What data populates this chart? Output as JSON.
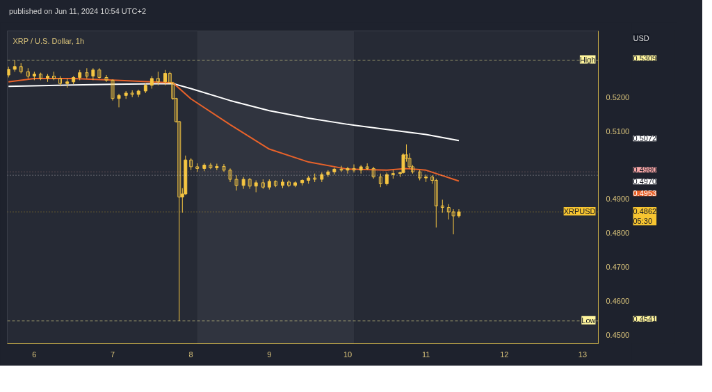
{
  "chart_data": {
    "type": "candlestick",
    "title": "XRP / U.S. Dollar, 1h",
    "subtitle": "published on Jun 11, 2024 10:54 UTC+2",
    "ylabel": "USD",
    "color": "#f5c542",
    "x": [
      5.67,
      5.75,
      5.83,
      5.92,
      6.0,
      6.08,
      6.17,
      6.25,
      6.33,
      6.42,
      6.5,
      6.58,
      6.67,
      6.75,
      6.83,
      6.92,
      7.0,
      7.08,
      7.17,
      7.25,
      7.33,
      7.42,
      7.5,
      7.58,
      7.67,
      7.73,
      7.77,
      7.81,
      7.85,
      7.89,
      7.93,
      8.0,
      8.08,
      8.17,
      8.25,
      8.33,
      8.42,
      8.5,
      8.58,
      8.67,
      8.75,
      8.83,
      8.92,
      9.0,
      9.08,
      9.17,
      9.25,
      9.33,
      9.42,
      9.5,
      9.58,
      9.67,
      9.75,
      9.83,
      9.92,
      10.0,
      10.08,
      10.17,
      10.25,
      10.33,
      10.42,
      10.5,
      10.58,
      10.67,
      10.71,
      10.75,
      10.79,
      10.83,
      10.92,
      11.0,
      11.08,
      11.13,
      11.21,
      11.29,
      11.35,
      11.42
    ],
    "ohlc": [
      [
        0.5265,
        0.529,
        0.5258,
        0.5282
      ],
      [
        0.5282,
        0.5309,
        0.5275,
        0.529
      ],
      [
        0.529,
        0.53,
        0.527,
        0.5275
      ],
      [
        0.5275,
        0.5285,
        0.5255,
        0.5262
      ],
      [
        0.5262,
        0.5275,
        0.525,
        0.5268
      ],
      [
        0.5268,
        0.5272,
        0.525,
        0.5256
      ],
      [
        0.5256,
        0.5268,
        0.5245,
        0.5262
      ],
      [
        0.5262,
        0.5275,
        0.525,
        0.5255
      ],
      [
        0.5255,
        0.5262,
        0.5232,
        0.524
      ],
      [
        0.524,
        0.5255,
        0.5228,
        0.5245
      ],
      [
        0.5245,
        0.5262,
        0.5238,
        0.5258
      ],
      [
        0.5258,
        0.528,
        0.525,
        0.5272
      ],
      [
        0.5272,
        0.5285,
        0.5255,
        0.5262
      ],
      [
        0.5262,
        0.5285,
        0.525,
        0.528
      ],
      [
        0.528,
        0.5285,
        0.5255,
        0.5258
      ],
      [
        0.5258,
        0.5265,
        0.5245,
        0.525
      ],
      [
        0.525,
        0.5252,
        0.519,
        0.5196
      ],
      [
        0.5196,
        0.521,
        0.517,
        0.5205
      ],
      [
        0.5205,
        0.5218,
        0.5195,
        0.5212
      ],
      [
        0.5212,
        0.522,
        0.52,
        0.5208
      ],
      [
        0.5208,
        0.5222,
        0.52,
        0.5218
      ],
      [
        0.5218,
        0.524,
        0.5212,
        0.5235
      ],
      [
        0.5235,
        0.5262,
        0.5225,
        0.5255
      ],
      [
        0.5255,
        0.5275,
        0.5235,
        0.5245
      ],
      [
        0.5245,
        0.528,
        0.5235,
        0.527
      ],
      [
        0.527,
        0.5275,
        0.524,
        0.5242
      ],
      [
        0.5242,
        0.5245,
        0.5192,
        0.5196
      ],
      [
        0.5196,
        0.5198,
        0.5125,
        0.5128
      ],
      [
        0.5128,
        0.513,
        0.4541,
        0.4906
      ],
      [
        0.4906,
        0.4932,
        0.486,
        0.4915
      ],
      [
        0.4915,
        0.5028,
        0.4912,
        0.5015
      ],
      [
        0.5015,
        0.502,
        0.4985,
        0.4995
      ],
      [
        0.4995,
        0.5005,
        0.498,
        0.499
      ],
      [
        0.499,
        0.5005,
        0.4982,
        0.5
      ],
      [
        0.5,
        0.5006,
        0.4988,
        0.4992
      ],
      [
        0.4992,
        0.5004,
        0.4985,
        0.4996
      ],
      [
        0.4996,
        0.5003,
        0.498,
        0.4985
      ],
      [
        0.4985,
        0.499,
        0.495,
        0.4958
      ],
      [
        0.4958,
        0.497,
        0.4925,
        0.494
      ],
      [
        0.494,
        0.4965,
        0.493,
        0.4958
      ],
      [
        0.4958,
        0.4962,
        0.493,
        0.4938
      ],
      [
        0.4938,
        0.4955,
        0.492,
        0.4948
      ],
      [
        0.4948,
        0.4958,
        0.493,
        0.4935
      ],
      [
        0.4935,
        0.4958,
        0.4928,
        0.4952
      ],
      [
        0.4952,
        0.4955,
        0.4935,
        0.494
      ],
      [
        0.494,
        0.4958,
        0.4932,
        0.495
      ],
      [
        0.495,
        0.4955,
        0.4935,
        0.494
      ],
      [
        0.494,
        0.4952,
        0.4935,
        0.4948
      ],
      [
        0.4948,
        0.4958,
        0.494,
        0.4955
      ],
      [
        0.4955,
        0.4968,
        0.4945,
        0.4962
      ],
      [
        0.4962,
        0.4975,
        0.495,
        0.4958
      ],
      [
        0.4958,
        0.4978,
        0.495,
        0.4972
      ],
      [
        0.4972,
        0.4985,
        0.4965,
        0.498
      ],
      [
        0.498,
        0.4992,
        0.4972,
        0.4988
      ],
      [
        0.4988,
        0.4998,
        0.498,
        0.4985
      ],
      [
        0.4985,
        0.4995,
        0.4975,
        0.499
      ],
      [
        0.499,
        0.5002,
        0.4978,
        0.4985
      ],
      [
        0.4985,
        0.5,
        0.4975,
        0.4995
      ],
      [
        0.4995,
        0.5005,
        0.4985,
        0.499
      ],
      [
        0.499,
        0.4995,
        0.496,
        0.4965
      ],
      [
        0.4965,
        0.4975,
        0.4935,
        0.4945
      ],
      [
        0.4945,
        0.4978,
        0.494,
        0.4972
      ],
      [
        0.4972,
        0.4985,
        0.496,
        0.4975
      ],
      [
        0.4975,
        0.498,
        0.4965,
        0.4978
      ],
      [
        0.4978,
        0.5035,
        0.4975,
        0.503
      ],
      [
        0.503,
        0.5061,
        0.501,
        0.502
      ],
      [
        0.502,
        0.5035,
        0.499,
        0.4995
      ],
      [
        0.4995,
        0.5,
        0.4975,
        0.498
      ],
      [
        0.498,
        0.4985,
        0.4955,
        0.4962
      ],
      [
        0.4962,
        0.4972,
        0.495,
        0.4965
      ],
      [
        0.4965,
        0.497,
        0.4945,
        0.4955
      ],
      [
        0.4955,
        0.496,
        0.4816,
        0.488
      ],
      [
        0.488,
        0.4898,
        0.486,
        0.4875
      ],
      [
        0.4875,
        0.4885,
        0.484,
        0.4862
      ],
      [
        0.4862,
        0.487,
        0.4796,
        0.485
      ],
      [
        0.485,
        0.487,
        0.4845,
        0.4862
      ]
    ],
    "series": [
      {
        "type": "line",
        "color": "#ffffff",
        "x": [
          5.67,
          6.5,
          7.0,
          7.77,
          8.0,
          8.5,
          9.0,
          9.5,
          10.0,
          10.5,
          11.0,
          11.42
        ],
        "values": [
          0.5232,
          0.5236,
          0.5238,
          0.524,
          0.5225,
          0.519,
          0.516,
          0.5138,
          0.512,
          0.5105,
          0.509,
          0.5072
        ]
      },
      {
        "type": "line",
        "color": "#e8622a",
        "x": [
          5.67,
          6.0,
          6.5,
          7.0,
          7.5,
          7.77,
          8.0,
          8.5,
          9.0,
          9.5,
          10.0,
          10.5,
          10.75,
          11.0,
          11.42
        ],
        "values": [
          0.5245,
          0.5255,
          0.5255,
          0.525,
          0.5245,
          0.5242,
          0.5195,
          0.5119,
          0.5047,
          0.5009,
          0.4988,
          0.4985,
          0.499,
          0.4985,
          0.4953
        ]
      }
    ],
    "ref_lines": [
      {
        "axis": "y",
        "value": 0.5309,
        "label": "High",
        "color": "#fff59d",
        "line_style": "dashed"
      },
      {
        "axis": "y",
        "value": 0.498,
        "color": "#f4a5a5",
        "line_style": "dotted"
      },
      {
        "axis": "y",
        "value": 0.497,
        "color": "#ffffff",
        "line_style": "dotted"
      },
      {
        "axis": "y",
        "value": 0.4862,
        "label": "XRPUSD",
        "color": "#f7c531",
        "line_style": "dotted"
      },
      {
        "axis": "y",
        "value": 0.4541,
        "label": "Low",
        "color": "#fff59d",
        "line_style": "dashed"
      }
    ],
    "bands": [
      {
        "axis": "x",
        "from": 8.08,
        "to": 10.08,
        "color": "#30343f"
      }
    ],
    "annotations": [
      "0.5309",
      "0.5072",
      "0.4980",
      "0.4970",
      "0.4953",
      "0.4862",
      "0.4541",
      "05:30"
    ],
    "xlim": [
      5.655,
      13.2
    ],
    "ylim": [
      0.4474,
      0.5395
    ],
    "xticks": [
      6,
      7,
      8,
      9,
      10,
      11,
      12,
      13
    ],
    "yticks": [
      {
        "value": 0.45,
        "label": "0.4500"
      },
      {
        "value": 0.46,
        "label": "0.4600"
      },
      {
        "value": 0.47,
        "label": "0.4700"
      },
      {
        "value": 0.48,
        "label": "0.4800"
      },
      {
        "value": 0.49,
        "label": "0.4900"
      },
      {
        "value": 0.51,
        "label": "0.5100"
      },
      {
        "value": 0.52,
        "label": "0.5200"
      }
    ],
    "grid": false
  }
}
